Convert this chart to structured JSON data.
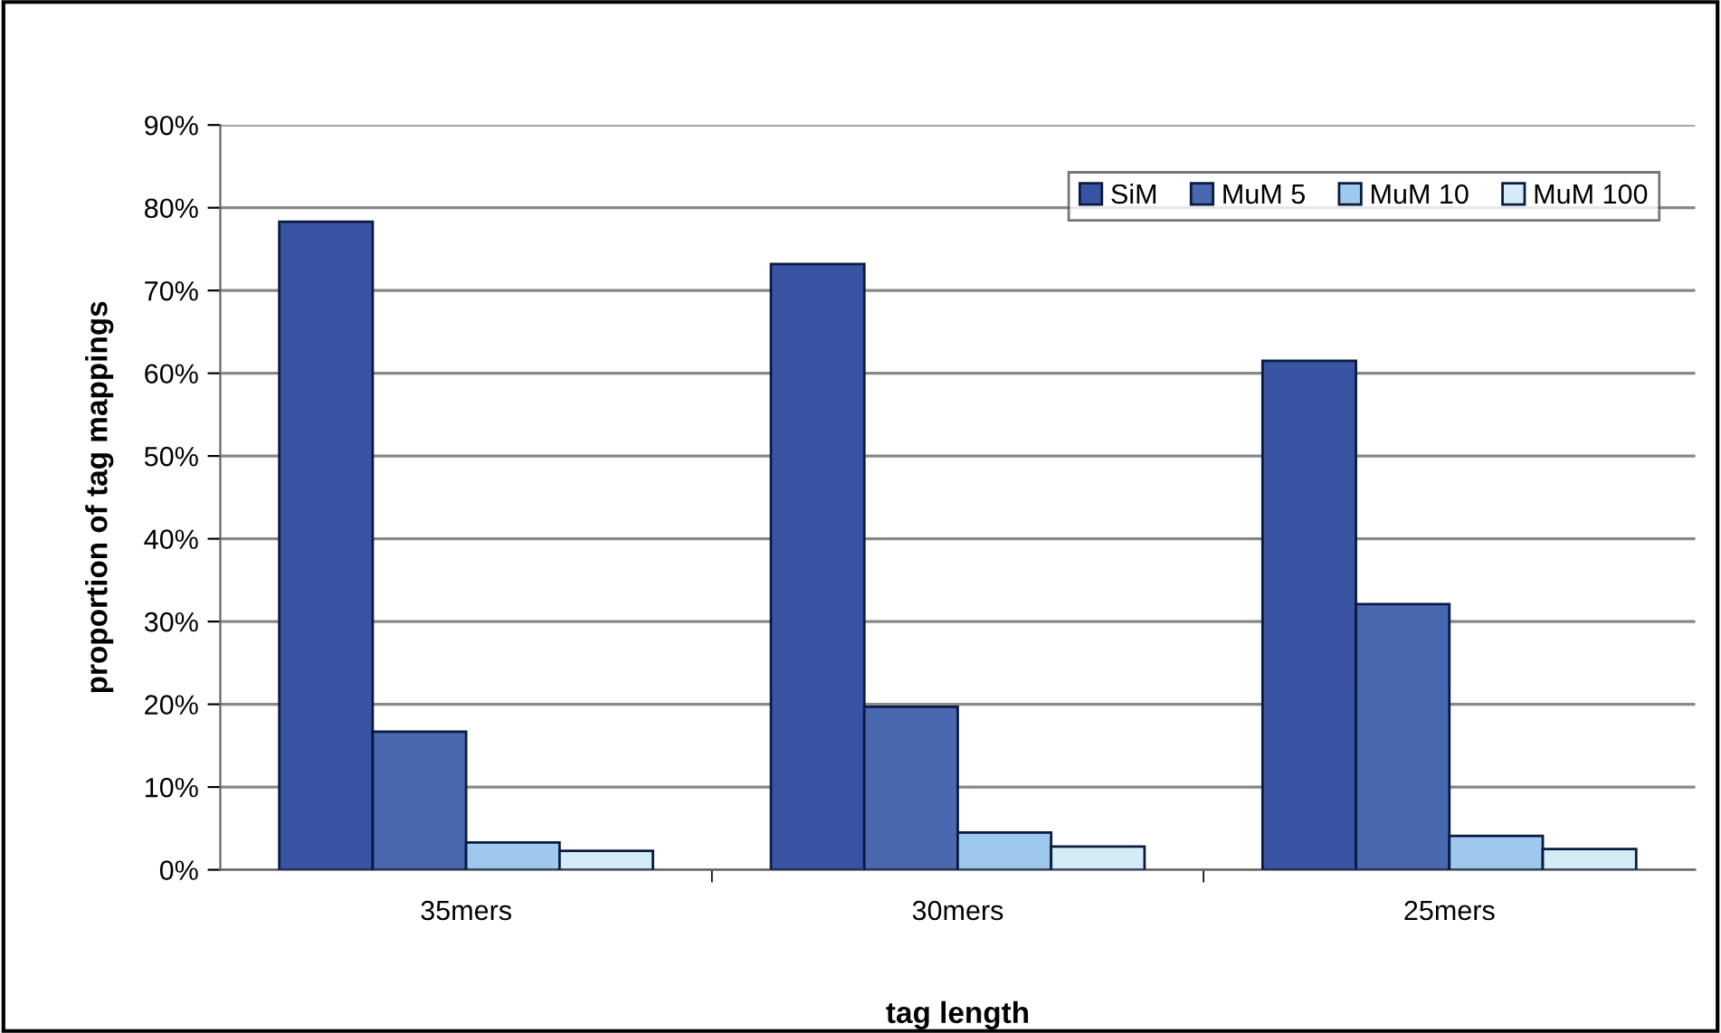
{
  "chart_data": {
    "type": "bar",
    "xlabel": "tag length",
    "ylabel": "proportion of tag mappings",
    "categories": [
      "35mers",
      "30mers",
      "25mers"
    ],
    "series": [
      {
        "name": "SiM",
        "color": "#3a54a4",
        "values": [
          78.3,
          73.2,
          61.5
        ]
      },
      {
        "name": "MuM 5",
        "color": "#4a68b0",
        "values": [
          16.7,
          19.7,
          32.1
        ]
      },
      {
        "name": "MuM 10",
        "color": "#9ec8ec",
        "values": [
          3.3,
          4.5,
          4.1
        ]
      },
      {
        "name": "MuM 100",
        "color": "#d4ecf6",
        "values": [
          2.3,
          2.8,
          2.5
        ]
      }
    ],
    "ylim": [
      0,
      90
    ],
    "yticks": [
      {
        "value": 0,
        "label": "0%"
      },
      {
        "value": 10,
        "label": "10%"
      },
      {
        "value": 20,
        "label": "20%"
      },
      {
        "value": 30,
        "label": "30%"
      },
      {
        "value": 40,
        "label": "40%"
      },
      {
        "value": 50,
        "label": "50%"
      },
      {
        "value": 60,
        "label": "60%"
      },
      {
        "value": 70,
        "label": "70%"
      },
      {
        "value": 80,
        "label": "80%"
      },
      {
        "value": 90,
        "label": "90%"
      }
    ],
    "grid": "y",
    "legend": "top right"
  }
}
